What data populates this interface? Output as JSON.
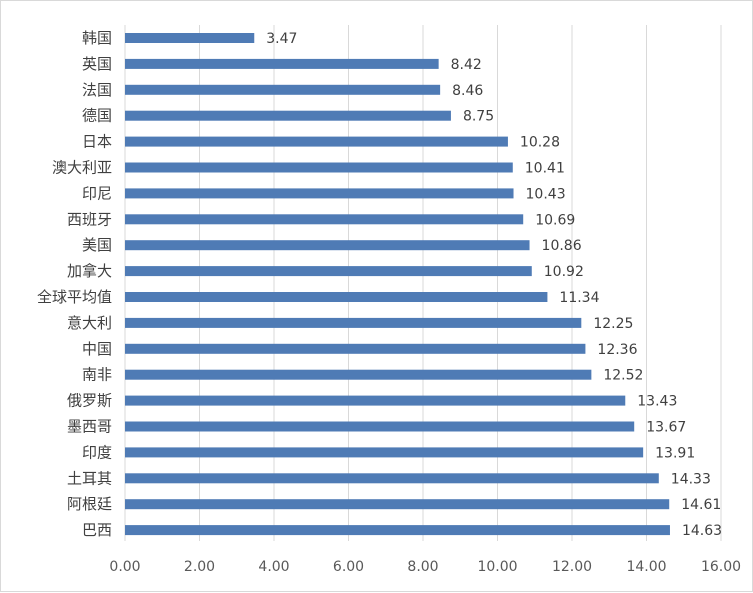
{
  "chart_data": {
    "type": "bar",
    "orientation": "horizontal",
    "categories": [
      "韩国",
      "英国",
      "法国",
      "德国",
      "日本",
      "澳大利亚",
      "印尼",
      "西班牙",
      "美国",
      "加拿大",
      "全球平均值",
      "意大利",
      "中国",
      "南非",
      "俄罗斯",
      "墨西哥",
      "印度",
      "土耳其",
      "阿根廷",
      "巴西"
    ],
    "values": [
      3.47,
      8.42,
      8.46,
      8.75,
      10.28,
      10.41,
      10.43,
      10.69,
      10.86,
      10.92,
      11.34,
      12.25,
      12.36,
      12.52,
      13.43,
      13.67,
      13.91,
      14.33,
      14.61,
      14.63
    ],
    "value_labels": [
      "3.47",
      "8.42",
      "8.46",
      "8.75",
      "10.28",
      "10.41",
      "10.43",
      "10.69",
      "10.86",
      "10.92",
      "11.34",
      "12.25",
      "12.36",
      "12.52",
      "13.43",
      "13.67",
      "13.91",
      "14.33",
      "14.61",
      "14.63"
    ],
    "x_ticks": [
      0,
      2,
      4,
      6,
      8,
      10,
      12,
      14,
      16
    ],
    "x_tick_labels": [
      "0.00",
      "2.00",
      "4.00",
      "6.00",
      "8.00",
      "10.00",
      "12.00",
      "14.00",
      "16.00"
    ],
    "xlim": [
      0,
      16
    ],
    "grid": true,
    "colors": {
      "bar": "#4F7BB5",
      "grid": "#d9d9d9",
      "text": "#404040"
    },
    "title": "",
    "xlabel": "",
    "ylabel": ""
  }
}
